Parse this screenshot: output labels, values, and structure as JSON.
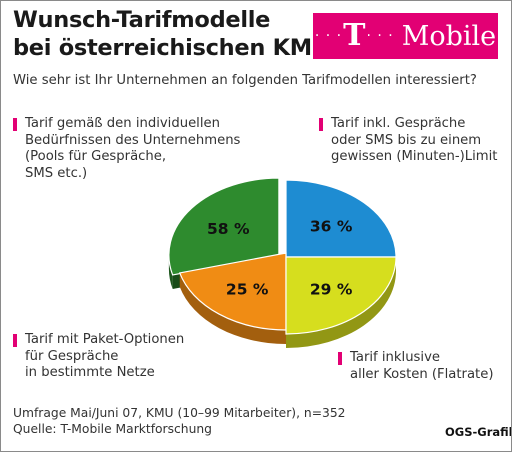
{
  "title_line1": "Wunsch-Tarifmodelle",
  "title_line2": "bei österreichischen KMU",
  "subtitle": "Wie sehr ist Ihr Unternehmen an folgenden Tarifmodellen interessiert?",
  "logo": {
    "dots": "· · ·",
    "t": "T",
    "text": "Mobile",
    "color": "#e20074"
  },
  "chart_data": {
    "type": "pie",
    "slices": [
      {
        "label": "Tarif gemäß den individuellen Bedürfnissen des Unternehmens (Pools für Gespräche, SMS etc.)",
        "value": 58,
        "display": "58 %",
        "color": "#2e8b2e"
      },
      {
        "label": "Tarif inkl. Gespräche oder SMS bis zu einem gewissen (Minuten-)Limit",
        "value": 36,
        "display": "36 %",
        "color": "#1e8cd2"
      },
      {
        "label": "Tarif inklusive aller Kosten (Flatrate)",
        "value": 29,
        "display": "29 %",
        "color": "#d6de1e"
      },
      {
        "label": "Tarif mit Paket-Optionen für Gespräche in bestimmte Netze",
        "value": 25,
        "display": "25 %",
        "color": "#f08c14"
      }
    ]
  },
  "labels": {
    "s58": "Tarif gemäß den individuellen\nBedürfnissen des Unternehmens\n(Pools für Gespräche,\nSMS etc.)",
    "s36": "Tarif inkl. Gespräche\noder SMS bis zu einem\ngewissen (Minuten-)Limit",
    "s25": "Tarif mit Paket-Optionen\nfür Gespräche\nin bestimmte Netze",
    "s29": "Tarif inklusive\naller Kosten (Flatrate)"
  },
  "footnote_line1": "Umfrage Mai/Juni 07, KMU (10–99 Mitarbeiter), n=352",
  "footnote_line2": "Quelle: T-Mobile Marktforschung",
  "credit": "OGS-Grafik"
}
